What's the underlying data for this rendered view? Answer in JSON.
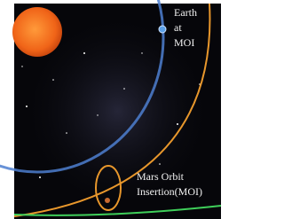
{
  "earth_label": [
    "Earth",
    "at",
    "MOI"
  ],
  "mars_label": [
    "Mars Orbit",
    "Insertion(MOI)"
  ]
}
